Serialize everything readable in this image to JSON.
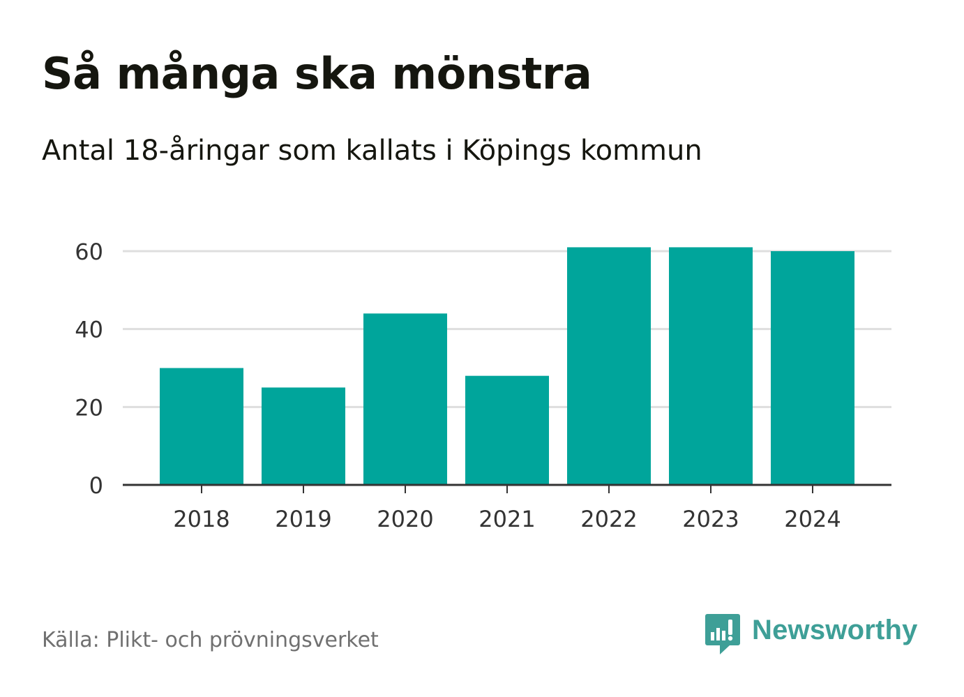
{
  "header": {
    "title": "Så många ska mönstra",
    "subtitle": "Antal 18-åringar som kallats i Köpings kommun"
  },
  "footer": {
    "source": "Källa: Plikt- och prövningsverket",
    "brand": "Newsworthy"
  },
  "colors": {
    "bar": "#00a59b",
    "grid": "#dedede",
    "axis": "#333333",
    "brand": "#3e9f97"
  },
  "chart_data": {
    "type": "bar",
    "title": "Så många ska mönstra",
    "subtitle": "Antal 18-åringar som kallats i Köpings kommun",
    "categories": [
      "2018",
      "2019",
      "2020",
      "2021",
      "2022",
      "2023",
      "2024"
    ],
    "values": [
      30,
      25,
      44,
      28,
      61,
      61,
      60
    ],
    "xlabel": "",
    "ylabel": "",
    "ylim": [
      0,
      60
    ],
    "yticks": [
      0,
      20,
      40,
      60
    ],
    "grid": true,
    "legend": "none"
  }
}
